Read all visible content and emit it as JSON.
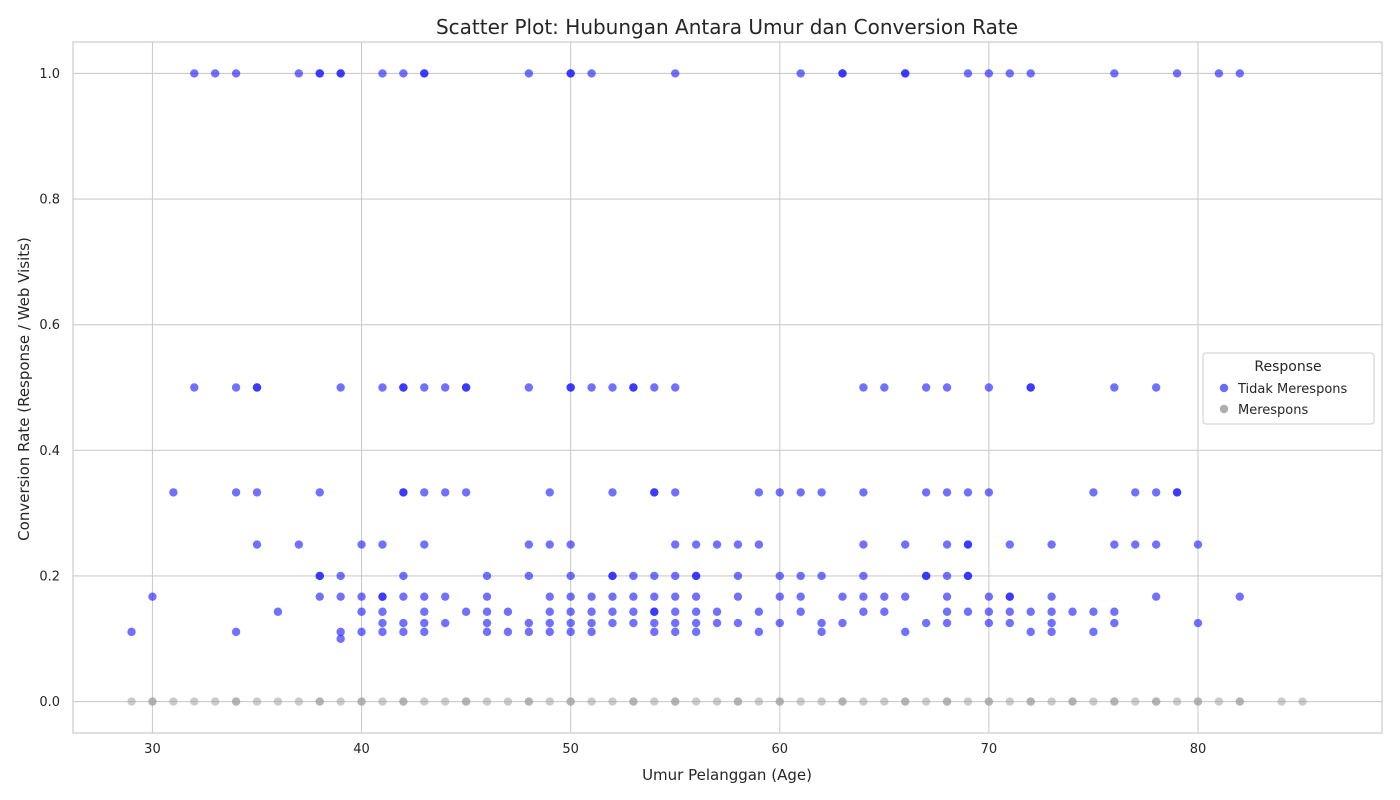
{
  "chart_data": {
    "type": "scatter",
    "title": "Scatter Plot: Hubungan Antara Umur dan Conversion Rate",
    "xlabel": "Umur Pelanggan (Age)",
    "ylabel": "Conversion Rate (Response / Web Visits)",
    "xlim": [
      26.2,
      88.8
    ],
    "ylim": [
      -0.05,
      1.05
    ],
    "xticks": [
      30,
      40,
      50,
      60,
      70,
      80
    ],
    "yticks": [
      0.0,
      0.2,
      0.4,
      0.6,
      0.8,
      1.0
    ],
    "grid": true,
    "legend": {
      "title": "Response",
      "placement": "center-right"
    },
    "colors": {
      "tidak": "#1a1aff",
      "merespons": "#a0a0a0",
      "grid": "#cccccc",
      "spine": "#cccccc"
    },
    "series": [
      {
        "name": "Tidak Merespons",
        "color": "#1a1aff",
        "points": [
          [
            32,
            1.0
          ],
          [
            33,
            1.0
          ],
          [
            34,
            1.0
          ],
          [
            37,
            1.0
          ],
          [
            38,
            1.0
          ],
          [
            38,
            1.0
          ],
          [
            39,
            1.0
          ],
          [
            39,
            1.0
          ],
          [
            41,
            1.0
          ],
          [
            42,
            1.0
          ],
          [
            43,
            1.0
          ],
          [
            43,
            1.0
          ],
          [
            48,
            1.0
          ],
          [
            50,
            1.0
          ],
          [
            50,
            1.0
          ],
          [
            51,
            1.0
          ],
          [
            55,
            1.0
          ],
          [
            61,
            1.0
          ],
          [
            63,
            1.0
          ],
          [
            63,
            1.0
          ],
          [
            66,
            1.0
          ],
          [
            66,
            1.0
          ],
          [
            69,
            1.0
          ],
          [
            70,
            1.0
          ],
          [
            71,
            1.0
          ],
          [
            72,
            1.0
          ],
          [
            76,
            1.0
          ],
          [
            79,
            1.0
          ],
          [
            81,
            1.0
          ],
          [
            82,
            1.0
          ],
          [
            32,
            0.5
          ],
          [
            34,
            0.5
          ],
          [
            35,
            0.5
          ],
          [
            35,
            0.5
          ],
          [
            39,
            0.5
          ],
          [
            41,
            0.5
          ],
          [
            42,
            0.5
          ],
          [
            42,
            0.5
          ],
          [
            43,
            0.5
          ],
          [
            44,
            0.5
          ],
          [
            45,
            0.5
          ],
          [
            45,
            0.5
          ],
          [
            48,
            0.5
          ],
          [
            50,
            0.5
          ],
          [
            50,
            0.5
          ],
          [
            51,
            0.5
          ],
          [
            52,
            0.5
          ],
          [
            53,
            0.5
          ],
          [
            53,
            0.5
          ],
          [
            54,
            0.5
          ],
          [
            55,
            0.5
          ],
          [
            64,
            0.5
          ],
          [
            65,
            0.5
          ],
          [
            67,
            0.5
          ],
          [
            68,
            0.5
          ],
          [
            70,
            0.5
          ],
          [
            72,
            0.5
          ],
          [
            72,
            0.5
          ],
          [
            76,
            0.5
          ],
          [
            78,
            0.5
          ],
          [
            31,
            0.333
          ],
          [
            34,
            0.333
          ],
          [
            35,
            0.333
          ],
          [
            38,
            0.333
          ],
          [
            42,
            0.333
          ],
          [
            42,
            0.333
          ],
          [
            43,
            0.333
          ],
          [
            44,
            0.333
          ],
          [
            45,
            0.333
          ],
          [
            49,
            0.333
          ],
          [
            52,
            0.333
          ],
          [
            54,
            0.333
          ],
          [
            54,
            0.333
          ],
          [
            55,
            0.333
          ],
          [
            59,
            0.333
          ],
          [
            60,
            0.333
          ],
          [
            61,
            0.333
          ],
          [
            62,
            0.333
          ],
          [
            64,
            0.333
          ],
          [
            67,
            0.333
          ],
          [
            68,
            0.333
          ],
          [
            69,
            0.333
          ],
          [
            70,
            0.333
          ],
          [
            75,
            0.333
          ],
          [
            77,
            0.333
          ],
          [
            78,
            0.333
          ],
          [
            79,
            0.333
          ],
          [
            79,
            0.333
          ],
          [
            35,
            0.25
          ],
          [
            37,
            0.25
          ],
          [
            40,
            0.25
          ],
          [
            41,
            0.25
          ],
          [
            43,
            0.25
          ],
          [
            48,
            0.25
          ],
          [
            49,
            0.25
          ],
          [
            50,
            0.25
          ],
          [
            55,
            0.25
          ],
          [
            56,
            0.25
          ],
          [
            57,
            0.25
          ],
          [
            58,
            0.25
          ],
          [
            59,
            0.25
          ],
          [
            64,
            0.25
          ],
          [
            66,
            0.25
          ],
          [
            68,
            0.25
          ],
          [
            69,
            0.25
          ],
          [
            69,
            0.25
          ],
          [
            71,
            0.25
          ],
          [
            73,
            0.25
          ],
          [
            76,
            0.25
          ],
          [
            77,
            0.25
          ],
          [
            78,
            0.25
          ],
          [
            80,
            0.25
          ],
          [
            38,
            0.2
          ],
          [
            38,
            0.2
          ],
          [
            39,
            0.2
          ],
          [
            42,
            0.2
          ],
          [
            46,
            0.2
          ],
          [
            48,
            0.2
          ],
          [
            50,
            0.2
          ],
          [
            52,
            0.2
          ],
          [
            52,
            0.2
          ],
          [
            53,
            0.2
          ],
          [
            54,
            0.2
          ],
          [
            55,
            0.2
          ],
          [
            56,
            0.2
          ],
          [
            56,
            0.2
          ],
          [
            58,
            0.2
          ],
          [
            60,
            0.2
          ],
          [
            61,
            0.2
          ],
          [
            62,
            0.2
          ],
          [
            64,
            0.2
          ],
          [
            67,
            0.2
          ],
          [
            67,
            0.2
          ],
          [
            68,
            0.2
          ],
          [
            69,
            0.2
          ],
          [
            69,
            0.2
          ],
          [
            30,
            0.167
          ],
          [
            38,
            0.167
          ],
          [
            39,
            0.167
          ],
          [
            40,
            0.167
          ],
          [
            41,
            0.167
          ],
          [
            41,
            0.167
          ],
          [
            42,
            0.167
          ],
          [
            43,
            0.167
          ],
          [
            44,
            0.167
          ],
          [
            46,
            0.167
          ],
          [
            49,
            0.167
          ],
          [
            50,
            0.167
          ],
          [
            51,
            0.167
          ],
          [
            52,
            0.167
          ],
          [
            53,
            0.167
          ],
          [
            54,
            0.167
          ],
          [
            55,
            0.167
          ],
          [
            56,
            0.167
          ],
          [
            58,
            0.167
          ],
          [
            60,
            0.167
          ],
          [
            61,
            0.167
          ],
          [
            63,
            0.167
          ],
          [
            64,
            0.167
          ],
          [
            65,
            0.167
          ],
          [
            66,
            0.167
          ],
          [
            68,
            0.167
          ],
          [
            70,
            0.167
          ],
          [
            71,
            0.167
          ],
          [
            71,
            0.167
          ],
          [
            73,
            0.167
          ],
          [
            78,
            0.167
          ],
          [
            82,
            0.167
          ],
          [
            36,
            0.143
          ],
          [
            40,
            0.143
          ],
          [
            41,
            0.143
          ],
          [
            43,
            0.143
          ],
          [
            45,
            0.143
          ],
          [
            46,
            0.143
          ],
          [
            47,
            0.143
          ],
          [
            49,
            0.143
          ],
          [
            50,
            0.143
          ],
          [
            51,
            0.143
          ],
          [
            52,
            0.143
          ],
          [
            53,
            0.143
          ],
          [
            54,
            0.143
          ],
          [
            54,
            0.143
          ],
          [
            55,
            0.143
          ],
          [
            56,
            0.143
          ],
          [
            57,
            0.143
          ],
          [
            59,
            0.143
          ],
          [
            61,
            0.143
          ],
          [
            64,
            0.143
          ],
          [
            65,
            0.143
          ],
          [
            68,
            0.143
          ],
          [
            69,
            0.143
          ],
          [
            70,
            0.143
          ],
          [
            71,
            0.143
          ],
          [
            72,
            0.143
          ],
          [
            73,
            0.143
          ],
          [
            74,
            0.143
          ],
          [
            75,
            0.143
          ],
          [
            76,
            0.143
          ],
          [
            41,
            0.125
          ],
          [
            42,
            0.125
          ],
          [
            43,
            0.125
          ],
          [
            44,
            0.125
          ],
          [
            46,
            0.125
          ],
          [
            48,
            0.125
          ],
          [
            49,
            0.125
          ],
          [
            50,
            0.125
          ],
          [
            51,
            0.125
          ],
          [
            52,
            0.125
          ],
          [
            53,
            0.125
          ],
          [
            54,
            0.125
          ],
          [
            55,
            0.125
          ],
          [
            56,
            0.125
          ],
          [
            57,
            0.125
          ],
          [
            58,
            0.125
          ],
          [
            60,
            0.125
          ],
          [
            62,
            0.125
          ],
          [
            63,
            0.125
          ],
          [
            67,
            0.125
          ],
          [
            68,
            0.125
          ],
          [
            70,
            0.125
          ],
          [
            71,
            0.125
          ],
          [
            73,
            0.125
          ],
          [
            76,
            0.125
          ],
          [
            80,
            0.125
          ],
          [
            29,
            0.111
          ],
          [
            34,
            0.111
          ],
          [
            39,
            0.111
          ],
          [
            40,
            0.111
          ],
          [
            41,
            0.111
          ],
          [
            42,
            0.111
          ],
          [
            43,
            0.111
          ],
          [
            46,
            0.111
          ],
          [
            47,
            0.111
          ],
          [
            48,
            0.111
          ],
          [
            49,
            0.111
          ],
          [
            50,
            0.111
          ],
          [
            51,
            0.111
          ],
          [
            54,
            0.111
          ],
          [
            55,
            0.111
          ],
          [
            56,
            0.111
          ],
          [
            59,
            0.111
          ],
          [
            62,
            0.111
          ],
          [
            66,
            0.111
          ],
          [
            72,
            0.111
          ],
          [
            73,
            0.111
          ],
          [
            75,
            0.111
          ],
          [
            39,
            0.1
          ]
        ]
      },
      {
        "name": "Merespons",
        "color": "#a0a0a0",
        "points": [
          [
            29,
            0
          ],
          [
            30,
            0
          ],
          [
            31,
            0
          ],
          [
            32,
            0
          ],
          [
            33,
            0
          ],
          [
            34,
            0
          ],
          [
            35,
            0
          ],
          [
            36,
            0
          ],
          [
            37,
            0
          ],
          [
            38,
            0
          ],
          [
            39,
            0
          ],
          [
            40,
            0
          ],
          [
            41,
            0
          ],
          [
            42,
            0
          ],
          [
            43,
            0
          ],
          [
            44,
            0
          ],
          [
            45,
            0
          ],
          [
            46,
            0
          ],
          [
            47,
            0
          ],
          [
            48,
            0
          ],
          [
            49,
            0
          ],
          [
            50,
            0
          ],
          [
            51,
            0
          ],
          [
            52,
            0
          ],
          [
            53,
            0
          ],
          [
            54,
            0
          ],
          [
            55,
            0
          ],
          [
            56,
            0
          ],
          [
            57,
            0
          ],
          [
            58,
            0
          ],
          [
            59,
            0
          ],
          [
            60,
            0
          ],
          [
            61,
            0
          ],
          [
            62,
            0
          ],
          [
            63,
            0
          ],
          [
            64,
            0
          ],
          [
            65,
            0
          ],
          [
            66,
            0
          ],
          [
            67,
            0
          ],
          [
            68,
            0
          ],
          [
            69,
            0
          ],
          [
            70,
            0
          ],
          [
            71,
            0
          ],
          [
            72,
            0
          ],
          [
            73,
            0
          ],
          [
            74,
            0
          ],
          [
            75,
            0
          ],
          [
            76,
            0
          ],
          [
            77,
            0
          ],
          [
            78,
            0
          ],
          [
            79,
            0
          ],
          [
            80,
            0
          ],
          [
            81,
            0
          ],
          [
            82,
            0
          ],
          [
            84,
            0
          ],
          [
            85,
            0
          ],
          [
            30,
            0
          ],
          [
            34,
            0
          ],
          [
            38,
            0
          ],
          [
            40,
            0
          ],
          [
            42,
            0
          ],
          [
            45,
            0
          ],
          [
            48,
            0
          ],
          [
            50,
            0
          ],
          [
            53,
            0
          ],
          [
            55,
            0
          ],
          [
            58,
            0
          ],
          [
            60,
            0
          ],
          [
            63,
            0
          ],
          [
            66,
            0
          ],
          [
            68,
            0
          ],
          [
            70,
            0
          ],
          [
            72,
            0
          ],
          [
            74,
            0
          ],
          [
            76,
            0
          ],
          [
            78,
            0
          ],
          [
            80,
            0
          ],
          [
            82,
            0
          ]
        ]
      }
    ]
  }
}
